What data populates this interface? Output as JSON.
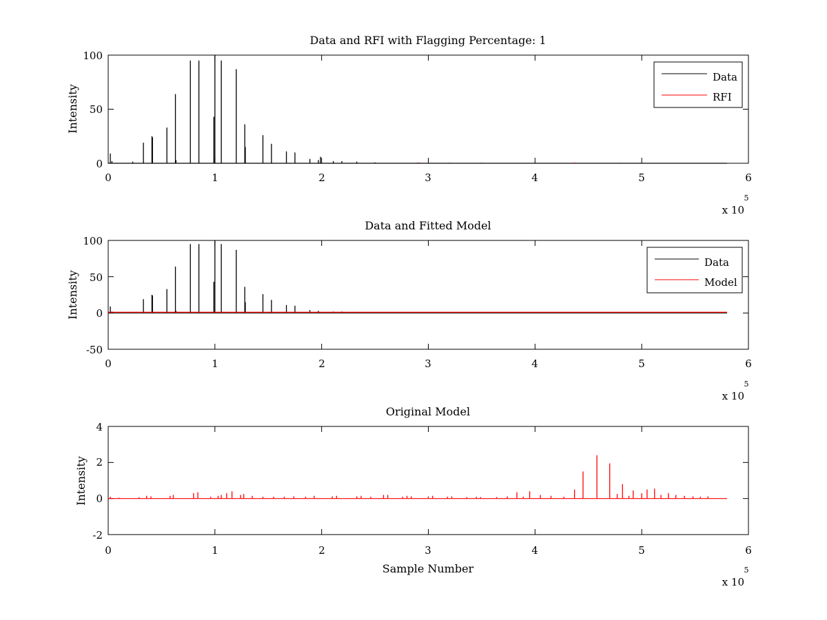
{
  "figure": {
    "background": "#ffffff",
    "series_colors": {
      "data": "#000000",
      "rfi": "#ff0000",
      "model": "#ff0000",
      "original": "#ff0000"
    }
  },
  "chart_data": [
    {
      "type": "line",
      "title": "Data and RFI with Flagging Percentage: 1",
      "xlabel": "",
      "ylabel": "Intensity",
      "xlim": [
        0,
        600000
      ],
      "ylim": [
        0,
        100
      ],
      "xticks": [
        0,
        100000,
        200000,
        300000,
        400000,
        500000,
        600000
      ],
      "xtick_labels": [
        "0",
        "1",
        "2",
        "3",
        "4",
        "5",
        "6"
      ],
      "yticks": [
        0,
        50,
        100
      ],
      "ytick_labels": [
        "0",
        "50",
        "100"
      ],
      "x_multiplier": {
        "base": "x 10",
        "exponent": "5"
      },
      "legend_position": "top-right",
      "grid": false,
      "baseline": 0,
      "x_end": 580000,
      "series": [
        {
          "name": "Data",
          "color": "#000000",
          "kind": "spikes",
          "points": [
            [
              2000,
              9
            ],
            [
              3500,
              2
            ],
            [
              23000,
              1.5
            ],
            [
              33000,
              19
            ],
            [
              41000,
              25
            ],
            [
              41500,
              24
            ],
            [
              55000,
              33
            ],
            [
              63000,
              64
            ],
            [
              63500,
              3
            ],
            [
              77000,
              95
            ],
            [
              85000,
              95
            ],
            [
              99000,
              43
            ],
            [
              100000,
              100
            ],
            [
              106000,
              95
            ],
            [
              120000,
              87
            ],
            [
              128000,
              36
            ],
            [
              128500,
              15
            ],
            [
              145000,
              26
            ],
            [
              153000,
              18
            ],
            [
              167000,
              11
            ],
            [
              175000,
              10
            ],
            [
              189000,
              4
            ],
            [
              197000,
              3
            ],
            [
              199000,
              6
            ],
            [
              211000,
              2
            ],
            [
              219000,
              2
            ],
            [
              233000,
              1.5
            ],
            [
              250000,
              0.8
            ],
            [
              290000,
              0.6
            ],
            [
              320000,
              0.5
            ],
            [
              350000,
              0.5
            ],
            [
              400000,
              0.4
            ],
            [
              480000,
              0.4
            ]
          ]
        },
        {
          "name": "RFI",
          "color": "#ff0000",
          "kind": "spikes",
          "points": [
            [
              292000,
              0.8
            ],
            [
              437000,
              0.8
            ]
          ]
        }
      ]
    },
    {
      "type": "line",
      "title": "Data and Fitted Model",
      "xlabel": "",
      "ylabel": "Intensity",
      "xlim": [
        0,
        600000
      ],
      "ylim": [
        -50,
        100
      ],
      "xticks": [
        0,
        100000,
        200000,
        300000,
        400000,
        500000,
        600000
      ],
      "xtick_labels": [
        "0",
        "1",
        "2",
        "3",
        "4",
        "5",
        "6"
      ],
      "yticks": [
        -50,
        0,
        50,
        100
      ],
      "ytick_labels": [
        "-50",
        "0",
        "50",
        "100"
      ],
      "x_multiplier": {
        "base": "x 10",
        "exponent": "5"
      },
      "legend_position": "top-right",
      "grid": false,
      "baseline": 0,
      "x_end": 580000,
      "series": [
        {
          "name": "Data",
          "color": "#000000",
          "kind": "spikes",
          "points": [
            [
              2000,
              9
            ],
            [
              3500,
              2
            ],
            [
              23000,
              1.5
            ],
            [
              33000,
              19
            ],
            [
              41000,
              25
            ],
            [
              41500,
              24
            ],
            [
              55000,
              33
            ],
            [
              63000,
              64
            ],
            [
              63500,
              3
            ],
            [
              77000,
              95
            ],
            [
              85000,
              95
            ],
            [
              99000,
              43
            ],
            [
              100000,
              100
            ],
            [
              106000,
              95
            ],
            [
              120000,
              87
            ],
            [
              128000,
              36
            ],
            [
              128500,
              15
            ],
            [
              145000,
              26
            ],
            [
              153000,
              18
            ],
            [
              167000,
              11
            ],
            [
              175000,
              10
            ],
            [
              189000,
              4
            ],
            [
              197000,
              3
            ],
            [
              211000,
              2
            ],
            [
              219000,
              2
            ],
            [
              233000,
              1.5
            ]
          ]
        },
        {
          "name": "Model",
          "color": "#ff0000",
          "kind": "flat",
          "points": [
            [
              0,
              1
            ],
            [
              580000,
              1
            ]
          ]
        }
      ]
    },
    {
      "type": "line",
      "title": "Original Model",
      "xlabel": "Sample Number",
      "ylabel": "Intensity",
      "xlim": [
        0,
        600000
      ],
      "ylim": [
        -2,
        4
      ],
      "xticks": [
        0,
        100000,
        200000,
        300000,
        400000,
        500000,
        600000
      ],
      "xtick_labels": [
        "0",
        "1",
        "2",
        "3",
        "4",
        "5",
        "6"
      ],
      "yticks": [
        -2,
        0,
        2,
        4
      ],
      "ytick_labels": [
        "-2",
        "0",
        "2",
        "4"
      ],
      "x_multiplier": {
        "base": "x 10",
        "exponent": "5"
      },
      "legend_position": "none",
      "grid": false,
      "baseline": 0,
      "x_end": 580000,
      "series": [
        {
          "color": "#ff0000",
          "kind": "spikes",
          "points": [
            [
              2000,
              0.1
            ],
            [
              10000,
              0.05
            ],
            [
              29000,
              0.07
            ],
            [
              36000,
              0.15
            ],
            [
              40000,
              0.12
            ],
            [
              58000,
              0.15
            ],
            [
              61000,
              0.2
            ],
            [
              80000,
              0.3
            ],
            [
              84000,
              0.35
            ],
            [
              96000,
              0.1
            ],
            [
              103000,
              0.15
            ],
            [
              106000,
              0.2
            ],
            [
              111000,
              0.3
            ],
            [
              116000,
              0.4
            ],
            [
              124000,
              0.2
            ],
            [
              127000,
              0.25
            ],
            [
              135000,
              0.15
            ],
            [
              145000,
              0.1
            ],
            [
              155000,
              0.1
            ],
            [
              165000,
              0.1
            ],
            [
              174000,
              0.12
            ],
            [
              185000,
              0.1
            ],
            [
              193000,
              0.15
            ],
            [
              210000,
              0.12
            ],
            [
              214000,
              0.15
            ],
            [
              233000,
              0.12
            ],
            [
              237000,
              0.15
            ],
            [
              246000,
              0.1
            ],
            [
              258000,
              0.2
            ],
            [
              262000,
              0.2
            ],
            [
              276000,
              0.1
            ],
            [
              280000,
              0.15
            ],
            [
              284000,
              0.12
            ],
            [
              300000,
              0.12
            ],
            [
              304000,
              0.15
            ],
            [
              318000,
              0.1
            ],
            [
              322000,
              0.12
            ],
            [
              336000,
              0.08
            ],
            [
              345000,
              0.1
            ],
            [
              349000,
              0.08
            ],
            [
              364000,
              0.08
            ],
            [
              374000,
              0.12
            ],
            [
              383000,
              0.35
            ],
            [
              389000,
              0.1
            ],
            [
              395000,
              0.4
            ],
            [
              405000,
              0.2
            ],
            [
              415000,
              0.15
            ],
            [
              427000,
              0.1
            ],
            [
              437000,
              0.5
            ],
            [
              445000,
              1.5
            ],
            [
              458000,
              2.4
            ],
            [
              470000,
              1.95
            ],
            [
              477000,
              0.25
            ],
            [
              482000,
              0.8
            ],
            [
              488000,
              0.15
            ],
            [
              492000,
              0.45
            ],
            [
              500000,
              0.3
            ],
            [
              505000,
              0.5
            ],
            [
              512000,
              0.55
            ],
            [
              518000,
              0.2
            ],
            [
              525000,
              0.3
            ],
            [
              532000,
              0.2
            ],
            [
              540000,
              0.15
            ],
            [
              548000,
              0.12
            ],
            [
              555000,
              0.1
            ],
            [
              562000,
              0.12
            ]
          ]
        }
      ]
    }
  ]
}
